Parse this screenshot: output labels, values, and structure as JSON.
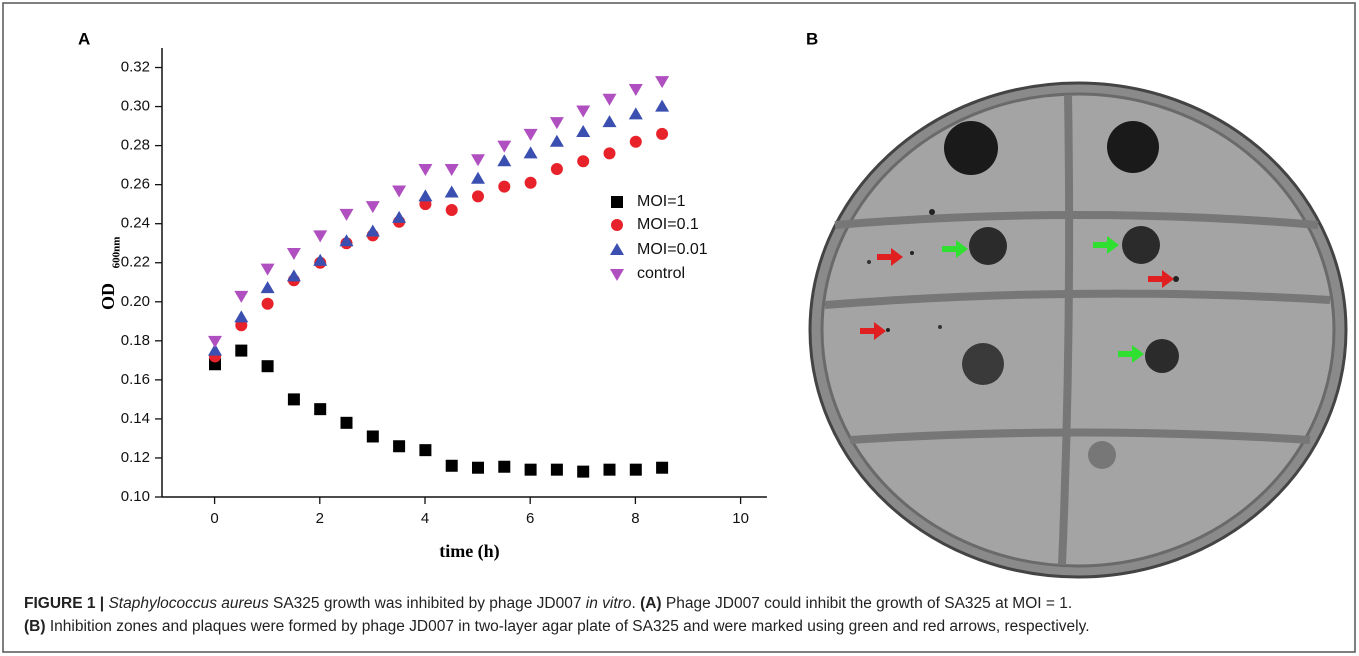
{
  "chart_data": {
    "type": "scatter",
    "panel_label": "A",
    "x_label": "time (h)",
    "y_label": "OD",
    "y_label_subscript": "600nm",
    "x": [
      0,
      0.5,
      1,
      1.5,
      2,
      2.5,
      3,
      3.5,
      4,
      4.5,
      5,
      5.5,
      6,
      6.5,
      7,
      7.5,
      8,
      8.5
    ],
    "series": [
      {
        "name": "MOI=1",
        "color": "#000000",
        "marker": "square",
        "values": [
          0.168,
          0.175,
          0.167,
          0.15,
          0.145,
          0.138,
          0.131,
          0.126,
          0.124,
          0.116,
          0.115,
          0.1155,
          0.114,
          0.114,
          0.113,
          0.114,
          0.114,
          0.115
        ]
      },
      {
        "name": "MOI=0.1",
        "color": "#e8222a",
        "marker": "circle",
        "values": [
          0.172,
          0.188,
          0.199,
          0.211,
          0.22,
          0.23,
          0.234,
          0.241,
          0.25,
          0.247,
          0.254,
          0.259,
          0.261,
          0.268,
          0.272,
          0.276,
          0.282,
          0.286
        ]
      },
      {
        "name": "MOI=0.01",
        "color": "#3a4fb0",
        "marker": "triangle-up",
        "values": [
          0.175,
          0.192,
          0.207,
          0.213,
          0.221,
          0.231,
          0.236,
          0.243,
          0.254,
          0.256,
          0.263,
          0.272,
          0.276,
          0.282,
          0.287,
          0.292,
          0.296,
          0.3
        ]
      },
      {
        "name": "control",
        "color": "#b050c0",
        "marker": "triangle-down",
        "values": [
          0.18,
          0.203,
          0.217,
          0.225,
          0.234,
          0.245,
          0.249,
          0.257,
          0.268,
          0.268,
          0.273,
          0.28,
          0.286,
          0.292,
          0.298,
          0.304,
          0.309,
          0.313
        ]
      }
    ],
    "xlim": [
      -1,
      10.5
    ],
    "xticks": [
      0,
      2,
      4,
      6,
      8,
      10
    ],
    "ylim": [
      0.1,
      0.33
    ],
    "yticks": [
      {
        "value": 0.1,
        "label": "0.10"
      },
      {
        "value": 0.12,
        "label": "0.12"
      },
      {
        "value": 0.14,
        "label": "0.14"
      },
      {
        "value": 0.16,
        "label": "0.16"
      },
      {
        "value": 0.18,
        "label": "0.18"
      },
      {
        "value": 0.2,
        "label": "0.20"
      },
      {
        "value": 0.22,
        "label": "0.22"
      },
      {
        "value": 0.24,
        "label": "0.24"
      },
      {
        "value": 0.26,
        "label": "0.26"
      },
      {
        "value": 0.28,
        "label": "0.28"
      },
      {
        "value": 0.3,
        "label": "0.30"
      },
      {
        "value": 0.32,
        "label": "0.32"
      }
    ],
    "grid": false
  },
  "panel_b": {
    "label": "B"
  },
  "caption": {
    "line1": [
      {
        "text": "FIGURE 1 | ",
        "style": "bold"
      },
      {
        "text": "Staphylococcus aureus",
        "style": "italic"
      },
      {
        "text": " SA325 growth was inhibited by phage JD007 ",
        "style": "normal"
      },
      {
        "text": "in vitro",
        "style": "italic"
      },
      {
        "text": ". ",
        "style": "normal"
      },
      {
        "text": "(A)",
        "style": "bold"
      },
      {
        "text": " Phage JD007 could inhibit the growth of SA325 at MOI = 1.",
        "style": "normal"
      }
    ],
    "line2": [
      {
        "text": "(B)",
        "style": "bold"
      },
      {
        "text": " Inhibition zones and plaques were formed by phage JD007 in two-layer agar plate of SA325 and were marked using green and red arrows, respectively.",
        "style": "normal"
      }
    ]
  }
}
